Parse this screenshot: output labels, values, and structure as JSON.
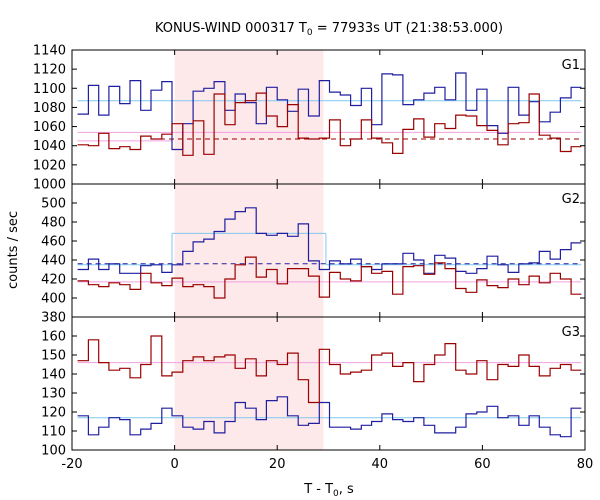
{
  "chart_data": {
    "type": "line",
    "title": {
      "prefix": "KONUS-WIND 000317 T",
      "sub": "0",
      "suffix": " = 77933s UT (21:38:53.000)"
    },
    "xlabel": {
      "prefix": "T - T",
      "sub": "0",
      "suffix": ", s"
    },
    "ylabel": "counts / sec",
    "xlim": [
      -20,
      80
    ],
    "x_ticks": [
      -20,
      0,
      20,
      40,
      60,
      80
    ],
    "x_tick_labels": [
      "-20",
      "0",
      "20",
      "40",
      "60",
      "80"
    ],
    "shaded_interval": {
      "x0": 0,
      "x1": 29,
      "color": "#fde8ea"
    },
    "grid": false,
    "colors": {
      "blue": "#1f1fa0",
      "red": "#9b0000",
      "cyan": "#80c8f0",
      "pink": "#f0a0e0"
    },
    "bin_edges": [
      -18.9,
      -16.8,
      -14.8,
      -12.8,
      -10.7,
      -8.7,
      -6.6,
      -4.6,
      -2.5,
      -0.5,
      1.6,
      3.6,
      5.7,
      7.7,
      9.8,
      11.8,
      13.8,
      15.9,
      17.9,
      20.0,
      22.0,
      24.1,
      26.1,
      28.2,
      30.2,
      32.3,
      34.3,
      36.4,
      38.4,
      40.4,
      42.5,
      44.5,
      46.6,
      48.6,
      50.7,
      52.7,
      54.8,
      56.8,
      58.9,
      60.9,
      63.0,
      65.0,
      67.1,
      69.1,
      71.1,
      73.2,
      75.2,
      77.3,
      79.3
    ],
    "panels": [
      {
        "label": "G1",
        "ylim": [
          1000,
          1140
        ],
        "y_ticks": [
          1000,
          1020,
          1040,
          1060,
          1080,
          1100,
          1120,
          1140
        ],
        "y_tick_labels": [
          "1000",
          "1020",
          "1040",
          "1060",
          "1080",
          "1100",
          "1120",
          "1140"
        ],
        "series": [
          {
            "color": "blue",
            "values": [
              1073,
              1103,
              1072,
              1102,
              1084,
              1108,
              1077,
              1098,
              1107,
              1036,
              1063,
              1097,
              1100,
              1107,
              1077,
              1094,
              1085,
              1063,
              1101,
              1088,
              1076,
              1099,
              1071,
              1108,
              1096,
              1093,
              1082,
              1100,
              1062,
              1115,
              1114,
              1083,
              1088,
              1095,
              1101,
              1088,
              1116,
              1077,
              1099,
              1061,
              1053,
              1101,
              1072,
              1086,
              1065,
              1075,
              1090,
              1101
            ]
          },
          {
            "color": "red",
            "values": [
              1041,
              1040,
              1053,
              1037,
              1039,
              1036,
              1050,
              1047,
              1052,
              1063,
              1030,
              1066,
              1031,
              1094,
              1062,
              1085,
              1087,
              1095,
              1071,
              1060,
              1083,
              1048,
              1047,
              1048,
              1067,
              1040,
              1047,
              1067,
              1048,
              1043,
              1032,
              1057,
              1068,
              1049,
              1063,
              1058,
              1072,
              1071,
              1061,
              1056,
              1041,
              1063,
              1064,
              1094,
              1051,
              1048,
              1034,
              1039
            ]
          }
        ],
        "levels": [
          {
            "color": "cyan",
            "dashed": false,
            "segments": [
              {
                "x0": -18.9,
                "x1": 79.3,
                "y": 1087
              }
            ]
          },
          {
            "color": "pink",
            "dashed": false,
            "segments": [
              {
                "x0": -18.9,
                "x1": 79.3,
                "y": 1054
              }
            ]
          },
          {
            "color": "pink",
            "dashed": false,
            "segments": [
              {
                "x0": -18.9,
                "x1": -0.5,
                "y": 1045
              }
            ]
          },
          {
            "color": "red",
            "dashed": true,
            "segments": [
              {
                "x0": -4.6,
                "x1": 79.3,
                "y": 1047
              }
            ]
          }
        ]
      },
      {
        "label": "G2",
        "ylim": [
          380,
          520
        ],
        "y_ticks": [
          380,
          400,
          420,
          440,
          460,
          480,
          500
        ],
        "y_tick_labels": [
          "380",
          "400",
          "420",
          "440",
          "460",
          "480",
          "500"
        ],
        "series": [
          {
            "color": "blue",
            "values": [
              430,
              441,
              430,
              436,
              426,
              426,
              434,
              435,
              427,
              435,
              449,
              459,
              462,
              470,
              483,
              491,
              495,
              468,
              466,
              468,
              465,
              478,
              439,
              430,
              439,
              436,
              441,
              433,
              430,
              436,
              436,
              447,
              440,
              426,
              445,
              442,
              428,
              426,
              431,
              444,
              435,
              427,
              436,
              437,
              449,
              441,
              451,
              458
            ]
          },
          {
            "color": "red",
            "values": [
              418,
              414,
              412,
              416,
              414,
              409,
              426,
              416,
              413,
              421,
              412,
              414,
              412,
              400,
              420,
              435,
              443,
              422,
              430,
              415,
              431,
              431,
              423,
              401,
              427,
              420,
              418,
              433,
              426,
              428,
              404,
              433,
              434,
              425,
              437,
              431,
              410,
              406,
              419,
              413,
              411,
              420,
              414,
              423,
              416,
              426,
              420,
              404
            ]
          }
        ],
        "levels": [
          {
            "color": "cyan",
            "dashed": false,
            "segments": [
              {
                "x0": -18.9,
                "x1": -0.5,
                "y": 435
              },
              {
                "x0": -0.5,
                "x1": 29.5,
                "y": 468
              },
              {
                "x0": 29.5,
                "x1": 79.3,
                "y": 435
              }
            ]
          },
          {
            "color": "pink",
            "dashed": false,
            "segments": [
              {
                "x0": -18.9,
                "x1": 79.3,
                "y": 417
              }
            ]
          },
          {
            "color": "blue",
            "dashed": true,
            "segments": [
              {
                "x0": -18.9,
                "x1": 79.3,
                "y": 436
              }
            ]
          }
        ]
      },
      {
        "label": "G3",
        "ylim": [
          100,
          170
        ],
        "y_ticks": [
          100,
          110,
          120,
          130,
          140,
          150,
          160
        ],
        "y_tick_labels": [
          "100",
          "110",
          "120",
          "130",
          "140",
          "150",
          "160"
        ],
        "series": [
          {
            "color": "blue",
            "values": [
              118,
              108,
              112,
              117,
              116,
              108,
              111,
              114,
              122,
              118,
              112,
              111,
              115,
              109,
              115,
              125,
              122,
              116,
              126,
              128,
              118,
              113,
              114,
              125,
              112,
              112,
              111,
              113,
              115,
              119,
              116,
              115,
              117,
              113,
              109,
              109,
              112,
              119,
              120,
              123,
              117,
              118,
              113,
              118,
              112,
              108,
              107,
              122
            ]
          },
          {
            "color": "red",
            "values": [
              147,
              158,
              146,
              142,
              143,
              138,
              145,
              160,
              139,
              141,
              147,
              149,
              147,
              149,
              150,
              143,
              148,
              139,
              147,
              145,
              151,
              137,
              125,
              153,
              145,
              140,
              141,
              142,
              150,
              151,
              144,
              146,
              136,
              145,
              150,
              156,
              142,
              140,
              147,
              137,
              145,
              144,
              150,
              144,
              139,
              143,
              145,
              142
            ]
          }
        ],
        "levels": [
          {
            "color": "cyan",
            "dashed": false,
            "segments": [
              {
                "x0": -18.9,
                "x1": 79.3,
                "y": 117
              }
            ]
          },
          {
            "color": "pink",
            "dashed": false,
            "segments": [
              {
                "x0": -18.9,
                "x1": 79.3,
                "y": 146
              }
            ]
          }
        ]
      }
    ]
  }
}
